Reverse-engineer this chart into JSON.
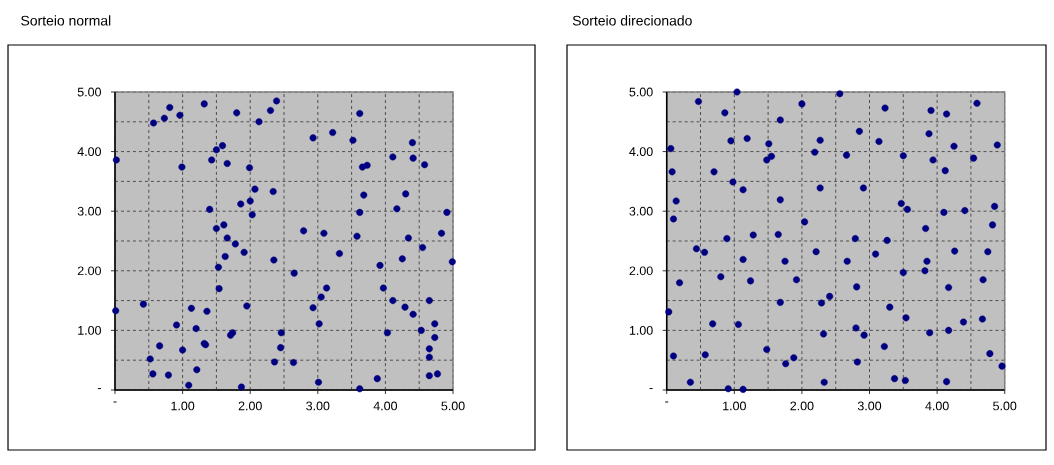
{
  "chart_data": [
    {
      "type": "scatter",
      "title": "Sorteio normal",
      "color": "#000080",
      "marker": "circle",
      "grid": true,
      "xlim": [
        0,
        5
      ],
      "ylim": [
        0,
        5
      ],
      "xticks": [
        {
          "value": 0,
          "label": "-"
        },
        {
          "value": 1,
          "label": "1.00"
        },
        {
          "value": 2,
          "label": "2.00"
        },
        {
          "value": 3,
          "label": "3.00"
        },
        {
          "value": 4,
          "label": "4.00"
        },
        {
          "value": 5,
          "label": "5.00"
        }
      ],
      "yticks": [
        {
          "value": 0,
          "label": "-"
        },
        {
          "value": 1,
          "label": "1.00"
        },
        {
          "value": 2,
          "label": "2.00"
        },
        {
          "value": 3,
          "label": "3.00"
        },
        {
          "value": 4,
          "label": "4.00"
        },
        {
          "value": 5,
          "label": "5.00"
        }
      ],
      "x": [
        0.02,
        0.01,
        0.57,
        0.73,
        0.81,
        0.96,
        1.32,
        1.8,
        2.13,
        2.3,
        2.39,
        1.5,
        1.59,
        1.43,
        1.66,
        0.99,
        1.99,
        2.07,
        2.34,
        1.86,
        2.0,
        1.4,
        2.03,
        1.5,
        1.61,
        1.66,
        1.78,
        1.91,
        1.63,
        2.35,
        1.53,
        1.54,
        0.42,
        1.13,
        1.36,
        1.95,
        0.91,
        1.2,
        1.71,
        1.74,
        2.46,
        0.66,
        1.32,
        1.34,
        1.0,
        0.52,
        0.56,
        0.79,
        1.21,
        1.09,
        1.87,
        2.36,
        2.45,
        3.62,
        2.93,
        3.22,
        3.52,
        4.4,
        4.11,
        4.41,
        4.58,
        3.66,
        3.73,
        3.68,
        4.3,
        4.17,
        3.62,
        4.91,
        2.79,
        3.09,
        3.58,
        4.34,
        4.83,
        4.55,
        3.32,
        4.25,
        3.92,
        4.99,
        2.65,
        3.13,
        3.97,
        3.05,
        2.93,
        4.11,
        4.29,
        4.41,
        4.65,
        3.02,
        4.03,
        4.53,
        4.73,
        4.73,
        4.65,
        4.65,
        2.64,
        3.01,
        3.62,
        3.88,
        4.65,
        4.77
      ],
      "values": [
        3.86,
        1.33,
        4.48,
        4.56,
        4.74,
        4.61,
        4.8,
        4.65,
        4.5,
        4.69,
        4.85,
        4.03,
        4.1,
        3.86,
        3.8,
        3.74,
        3.73,
        3.37,
        3.33,
        3.12,
        3.17,
        3.03,
        2.94,
        2.71,
        2.77,
        2.55,
        2.45,
        2.31,
        2.24,
        2.18,
        2.06,
        1.7,
        1.44,
        1.37,
        1.32,
        1.41,
        1.09,
        1.03,
        0.92,
        0.96,
        0.96,
        0.74,
        0.78,
        0.76,
        0.67,
        0.52,
        0.27,
        0.25,
        0.34,
        0.08,
        0.05,
        0.47,
        0.71,
        4.64,
        4.23,
        4.32,
        4.19,
        4.15,
        3.91,
        3.89,
        3.78,
        3.74,
        3.77,
        3.27,
        3.29,
        3.04,
        2.98,
        2.98,
        2.67,
        2.63,
        2.58,
        2.55,
        2.63,
        2.39,
        2.29,
        2.2,
        2.09,
        2.15,
        1.96,
        1.71,
        1.71,
        1.56,
        1.38,
        1.5,
        1.39,
        1.27,
        1.5,
        1.11,
        0.96,
        1.0,
        1.11,
        0.88,
        0.69,
        0.55,
        0.46,
        0.13,
        0.02,
        0.19,
        0.24,
        0.27
      ]
    },
    {
      "type": "scatter",
      "title": "Sorteio direcionado",
      "color": "#000080",
      "marker": "circle",
      "grid": true,
      "xlim": [
        0,
        5
      ],
      "ylim": [
        0,
        5
      ],
      "xticks": [
        {
          "value": 0,
          "label": "-"
        },
        {
          "value": 1,
          "label": "1.00"
        },
        {
          "value": 2,
          "label": "2.00"
        },
        {
          "value": 3,
          "label": "3.00"
        },
        {
          "value": 4,
          "label": "4.00"
        },
        {
          "value": 5,
          "label": "5.00"
        }
      ],
      "yticks": [
        {
          "value": 0,
          "label": "-"
        },
        {
          "value": 1,
          "label": "1.00"
        },
        {
          "value": 2,
          "label": "2.00"
        },
        {
          "value": 3,
          "label": "3.00"
        },
        {
          "value": 4,
          "label": "4.00"
        },
        {
          "value": 5,
          "label": "5.00"
        }
      ],
      "x": [
        1.04,
        0.47,
        0.86,
        1.68,
        2.0,
        0.95,
        1.19,
        1.51,
        2.27,
        0.06,
        1.48,
        1.55,
        2.19,
        0.08,
        0.7,
        0.98,
        1.13,
        2.27,
        1.68,
        0.14,
        0.1,
        2.04,
        0.89,
        1.28,
        1.65,
        0.44,
        0.56,
        1.13,
        1.75,
        2.21,
        0.19,
        0.8,
        1.24,
        1.92,
        0.03,
        1.68,
        2.29,
        0.68,
        1.06,
        2.32,
        0.1,
        0.57,
        1.48,
        1.88,
        1.76,
        0.35,
        0.91,
        1.13,
        2.33,
        2.56,
        3.23,
        3.91,
        4.14,
        4.59,
        2.85,
        3.14,
        3.88,
        4.25,
        4.89,
        2.66,
        3.5,
        3.94,
        4.54,
        4.12,
        2.91,
        3.47,
        3.56,
        4.1,
        4.41,
        4.85,
        3.83,
        4.82,
        2.79,
        3.26,
        3.09,
        4.26,
        4.75,
        2.67,
        3.85,
        3.5,
        3.82,
        4.68,
        2.81,
        4.17,
        2.41,
        3.3,
        3.54,
        4.39,
        4.67,
        2.8,
        2.92,
        3.89,
        4.17,
        3.22,
        4.78,
        4.96,
        2.82,
        3.37,
        3.53,
        4.14
      ],
      "values": [
        5.0,
        4.84,
        4.65,
        4.53,
        4.8,
        4.18,
        4.22,
        4.13,
        4.19,
        4.05,
        3.86,
        3.92,
        3.99,
        3.66,
        3.66,
        3.49,
        3.36,
        3.39,
        3.19,
        3.17,
        2.87,
        2.82,
        2.54,
        2.6,
        2.61,
        2.37,
        2.31,
        2.19,
        2.16,
        2.32,
        1.8,
        1.9,
        1.83,
        1.85,
        1.31,
        1.47,
        1.46,
        1.11,
        1.1,
        0.94,
        0.57,
        0.59,
        0.68,
        0.54,
        0.44,
        0.13,
        0.02,
        0.01,
        0.13,
        4.97,
        4.73,
        4.69,
        4.63,
        4.81,
        4.34,
        4.17,
        4.3,
        4.09,
        4.11,
        3.94,
        3.93,
        3.86,
        3.89,
        3.68,
        3.39,
        3.13,
        3.03,
        2.98,
        3.01,
        3.08,
        2.71,
        2.77,
        2.54,
        2.51,
        2.28,
        2.33,
        2.32,
        2.16,
        2.16,
        1.97,
        2.0,
        1.85,
        1.73,
        1.72,
        1.57,
        1.39,
        1.21,
        1.14,
        1.19,
        1.04,
        0.92,
        0.96,
        1.0,
        0.73,
        0.61,
        0.4,
        0.47,
        0.19,
        0.16,
        0.14
      ]
    }
  ]
}
